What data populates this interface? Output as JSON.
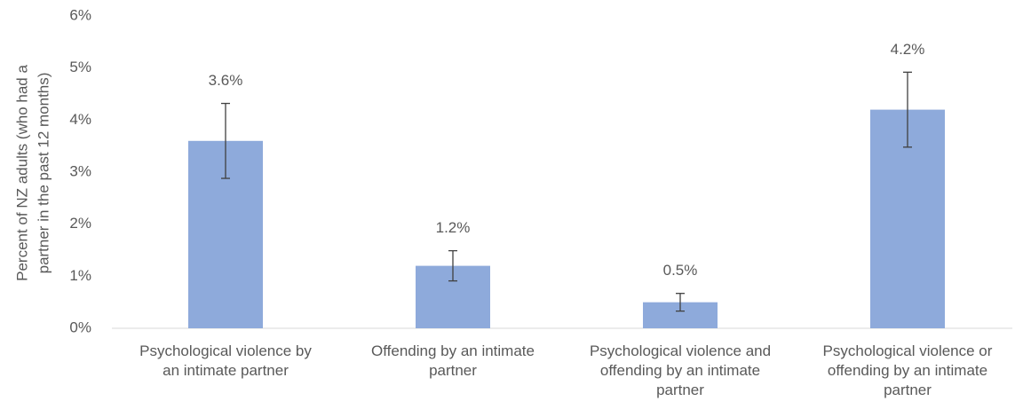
{
  "chart_data": {
    "type": "bar",
    "ylabel": [
      "Percent of NZ adults (who had a",
      "partner in the past 12 months)"
    ],
    "categories": [
      "Psychological violence by an intimate partner",
      "Offending by an intimate partner",
      "Psychological violence and offending by an intimate partner",
      "Psychological violence or offending by an intimate partner"
    ],
    "values": [
      3.6,
      1.2,
      0.5,
      4.2
    ],
    "value_labels": [
      "3.6%",
      "1.2%",
      "0.5%",
      "4.2%"
    ],
    "errors": [
      0.72,
      0.29,
      0.17,
      0.72
    ],
    "color": "#8eaadb",
    "error_color": "#404040",
    "ylim": [
      0,
      6
    ],
    "yticks": [
      {
        "value": 0,
        "label": "0%"
      },
      {
        "value": 1,
        "label": "1%"
      },
      {
        "value": 2,
        "label": "2%"
      },
      {
        "value": 3,
        "label": "3%"
      },
      {
        "value": 4,
        "label": "4%"
      },
      {
        "value": 5,
        "label": "5%"
      },
      {
        "value": 6,
        "label": "6%"
      }
    ],
    "grid": false
  }
}
